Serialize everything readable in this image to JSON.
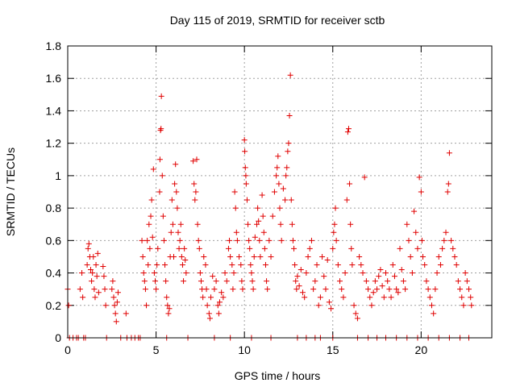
{
  "chart_data": {
    "type": "scatter",
    "title": "Day 115 of 2019, SRMTID for receiver sctb",
    "xlabel": "GPS time / hours",
    "ylabel": "SRMTID / TECUs",
    "xlim": [
      0,
      24
    ],
    "ylim": [
      0,
      1.8
    ],
    "x_ticks": [
      "0",
      "5",
      "10",
      "15",
      "20"
    ],
    "y_ticks": [
      "0",
      "0.2",
      "0.4",
      "0.6",
      "0.8",
      "1",
      "1.2",
      "1.4",
      "1.6",
      "1.8"
    ],
    "grid": true,
    "marker": "+",
    "color": "#e00000",
    "series": [
      {
        "name": "SRMTID",
        "points": [
          [
            0.0,
            0.3
          ],
          [
            0.05,
            0.2
          ],
          [
            0.3,
            0.0
          ],
          [
            0.6,
            0.0
          ],
          [
            0.9,
            0.0
          ],
          [
            0.7,
            0.3
          ],
          [
            0.8,
            0.4
          ],
          [
            0.85,
            0.25
          ],
          [
            1.1,
            0.45
          ],
          [
            1.15,
            0.55
          ],
          [
            1.2,
            0.58
          ],
          [
            1.25,
            0.5
          ],
          [
            1.3,
            0.42
          ],
          [
            1.35,
            0.35
          ],
          [
            1.4,
            0.4
          ],
          [
            1.45,
            0.5
          ],
          [
            1.5,
            0.3
          ],
          [
            1.55,
            0.25
          ],
          [
            1.6,
            0.45
          ],
          [
            1.65,
            0.38
          ],
          [
            1.7,
            0.52
          ],
          [
            1.75,
            0.28
          ],
          [
            2.0,
            0.44
          ],
          [
            2.05,
            0.38
          ],
          [
            2.1,
            0.3
          ],
          [
            2.15,
            0.2
          ],
          [
            2.5,
            0.3
          ],
          [
            2.55,
            0.35
          ],
          [
            2.6,
            0.25
          ],
          [
            2.65,
            0.2
          ],
          [
            2.7,
            0.15
          ],
          [
            2.75,
            0.1
          ],
          [
            2.8,
            0.22
          ],
          [
            2.85,
            0.28
          ],
          [
            3.3,
            0.15
          ],
          [
            3.35,
            0.0
          ],
          [
            3.8,
            0.0
          ],
          [
            4.1,
            0.0
          ],
          [
            4.2,
            0.6
          ],
          [
            4.25,
            0.5
          ],
          [
            4.3,
            0.4
          ],
          [
            4.35,
            0.35
          ],
          [
            4.4,
            0.3
          ],
          [
            4.45,
            0.2
          ],
          [
            4.5,
            0.6
          ],
          [
            4.55,
            0.45
          ],
          [
            4.6,
            0.7
          ],
          [
            4.65,
            0.55
          ],
          [
            4.7,
            0.75
          ],
          [
            4.75,
            0.85
          ],
          [
            4.8,
            0.62
          ],
          [
            4.85,
            1.04
          ],
          [
            4.9,
            0.4
          ],
          [
            4.95,
            0.35
          ],
          [
            5.0,
            0.3
          ],
          [
            5.05,
            0.45
          ],
          [
            5.1,
            0.55
          ],
          [
            5.2,
            0.9
          ],
          [
            5.22,
            1.1
          ],
          [
            5.25,
            1.28
          ],
          [
            5.28,
            1.29
          ],
          [
            5.3,
            1.49
          ],
          [
            5.35,
            1.0
          ],
          [
            5.4,
            0.75
          ],
          [
            5.45,
            0.6
          ],
          [
            5.5,
            0.45
          ],
          [
            5.55,
            0.35
          ],
          [
            5.6,
            0.25
          ],
          [
            5.65,
            0.2
          ],
          [
            5.7,
            0.15
          ],
          [
            5.75,
            0.18
          ],
          [
            5.8,
            0.5
          ],
          [
            5.85,
            0.65
          ],
          [
            5.9,
            0.85
          ],
          [
            5.95,
            0.7
          ],
          [
            6.0,
            0.5
          ],
          [
            6.05,
            0.95
          ],
          [
            6.1,
            1.07
          ],
          [
            6.15,
            0.9
          ],
          [
            6.2,
            0.8
          ],
          [
            6.25,
            0.65
          ],
          [
            6.3,
            0.55
          ],
          [
            6.35,
            0.6
          ],
          [
            6.4,
            0.7
          ],
          [
            6.45,
            0.5
          ],
          [
            6.5,
            0.45
          ],
          [
            6.55,
            0.35
          ],
          [
            6.6,
            0.55
          ],
          [
            6.65,
            0.48
          ],
          [
            6.7,
            0.4
          ],
          [
            7.1,
            1.09
          ],
          [
            7.15,
            0.95
          ],
          [
            7.2,
            0.85
          ],
          [
            7.25,
            0.9
          ],
          [
            7.3,
            1.1
          ],
          [
            7.35,
            0.7
          ],
          [
            7.4,
            0.6
          ],
          [
            7.45,
            0.55
          ],
          [
            7.5,
            0.4
          ],
          [
            7.55,
            0.35
          ],
          [
            7.6,
            0.3
          ],
          [
            7.65,
            0.25
          ],
          [
            7.7,
            0.5
          ],
          [
            7.8,
            0.45
          ],
          [
            7.85,
            0.3
          ],
          [
            7.9,
            0.2
          ],
          [
            8.0,
            0.15
          ],
          [
            8.05,
            0.12
          ],
          [
            8.1,
            0.25
          ],
          [
            8.2,
            0.38
          ],
          [
            8.3,
            0.3
          ],
          [
            8.4,
            0.35
          ],
          [
            8.5,
            0.2
          ],
          [
            8.55,
            0.15
          ],
          [
            8.6,
            0.22
          ],
          [
            8.7,
            0.28
          ],
          [
            8.8,
            0.25
          ],
          [
            8.9,
            0.4
          ],
          [
            9.0,
            0.35
          ],
          [
            9.1,
            0.55
          ],
          [
            9.15,
            0.6
          ],
          [
            9.2,
            0.5
          ],
          [
            9.3,
            0.45
          ],
          [
            9.35,
            0.3
          ],
          [
            9.4,
            0.4
          ],
          [
            9.45,
            0.9
          ],
          [
            9.5,
            0.8
          ],
          [
            9.55,
            0.65
          ],
          [
            9.6,
            0.6
          ],
          [
            9.7,
            0.5
          ],
          [
            9.8,
            0.45
          ],
          [
            9.85,
            0.35
          ],
          [
            9.9,
            0.3
          ],
          [
            10.0,
            1.22
          ],
          [
            10.02,
            1.15
          ],
          [
            10.05,
            1.05
          ],
          [
            10.08,
            1.0
          ],
          [
            10.1,
            0.95
          ],
          [
            10.15,
            0.85
          ],
          [
            10.2,
            0.7
          ],
          [
            10.25,
            0.6
          ],
          [
            10.3,
            0.55
          ],
          [
            10.35,
            0.45
          ],
          [
            10.4,
            0.4
          ],
          [
            10.45,
            0.35
          ],
          [
            10.5,
            0.3
          ],
          [
            10.55,
            0.5
          ],
          [
            10.6,
            0.62
          ],
          [
            10.7,
            0.7
          ],
          [
            10.75,
            0.8
          ],
          [
            10.8,
            0.72
          ],
          [
            10.85,
            0.6
          ],
          [
            10.9,
            0.5
          ],
          [
            11.0,
            0.88
          ],
          [
            11.05,
            0.75
          ],
          [
            11.1,
            0.65
          ],
          [
            11.15,
            0.55
          ],
          [
            11.2,
            0.45
          ],
          [
            11.25,
            0.35
          ],
          [
            11.3,
            0.3
          ],
          [
            11.4,
            0.6
          ],
          [
            11.5,
            0.5
          ],
          [
            11.6,
            0.75
          ],
          [
            11.7,
            0.9
          ],
          [
            11.8,
            1.0
          ],
          [
            11.85,
            1.05
          ],
          [
            11.9,
            1.12
          ],
          [
            11.95,
            0.95
          ],
          [
            12.0,
            0.8
          ],
          [
            12.05,
            0.7
          ],
          [
            12.1,
            0.6
          ],
          [
            12.2,
            0.92
          ],
          [
            12.3,
            0.85
          ],
          [
            12.35,
            1.0
          ],
          [
            12.4,
            1.05
          ],
          [
            12.45,
            1.15
          ],
          [
            12.5,
            1.2
          ],
          [
            12.55,
            1.37
          ],
          [
            12.6,
            1.62
          ],
          [
            12.65,
            0.85
          ],
          [
            12.7,
            0.7
          ],
          [
            12.75,
            0.6
          ],
          [
            12.8,
            0.55
          ],
          [
            12.85,
            0.45
          ],
          [
            12.9,
            0.35
          ],
          [
            12.95,
            0.3
          ],
          [
            13.0,
            0.38
          ],
          [
            13.1,
            0.32
          ],
          [
            13.2,
            0.42
          ],
          [
            13.3,
            0.28
          ],
          [
            13.4,
            0.25
          ],
          [
            13.5,
            0.4
          ],
          [
            13.6,
            0.5
          ],
          [
            13.7,
            0.55
          ],
          [
            13.8,
            0.6
          ],
          [
            13.9,
            0.3
          ],
          [
            14.0,
            0.35
          ],
          [
            14.1,
            0.45
          ],
          [
            14.2,
            0.2
          ],
          [
            14.3,
            0.25
          ],
          [
            14.4,
            0.5
          ],
          [
            14.5,
            0.38
          ],
          [
            14.6,
            0.3
          ],
          [
            14.7,
            0.48
          ],
          [
            14.8,
            0.22
          ],
          [
            14.9,
            0.18
          ],
          [
            15.0,
            0.55
          ],
          [
            15.05,
            0.65
          ],
          [
            15.1,
            0.7
          ],
          [
            15.15,
            0.8
          ],
          [
            15.2,
            0.6
          ],
          [
            15.3,
            0.45
          ],
          [
            15.4,
            0.35
          ],
          [
            15.5,
            0.3
          ],
          [
            15.6,
            0.25
          ],
          [
            15.7,
            0.4
          ],
          [
            15.8,
            0.85
          ],
          [
            15.85,
            1.27
          ],
          [
            15.9,
            1.29
          ],
          [
            15.95,
            0.95
          ],
          [
            16.0,
            0.7
          ],
          [
            16.05,
            0.55
          ],
          [
            16.1,
            0.45
          ],
          [
            16.2,
            0.2
          ],
          [
            16.3,
            0.15
          ],
          [
            16.4,
            0.12
          ],
          [
            16.5,
            0.5
          ],
          [
            16.6,
            0.45
          ],
          [
            16.7,
            0.4
          ],
          [
            16.8,
            0.99
          ],
          [
            16.9,
            0.35
          ],
          [
            17.0,
            0.3
          ],
          [
            17.1,
            0.25
          ],
          [
            17.2,
            0.2
          ],
          [
            17.3,
            0.28
          ],
          [
            17.4,
            0.35
          ],
          [
            17.5,
            0.3
          ],
          [
            17.6,
            0.38
          ],
          [
            17.7,
            0.42
          ],
          [
            17.8,
            0.32
          ],
          [
            17.9,
            0.25
          ],
          [
            18.0,
            0.4
          ],
          [
            18.1,
            0.35
          ],
          [
            18.2,
            0.3
          ],
          [
            18.3,
            0.25
          ],
          [
            18.4,
            0.45
          ],
          [
            18.5,
            0.38
          ],
          [
            18.6,
            0.3
          ],
          [
            18.7,
            0.28
          ],
          [
            18.8,
            0.55
          ],
          [
            18.9,
            0.42
          ],
          [
            19.0,
            0.35
          ],
          [
            19.1,
            0.3
          ],
          [
            19.2,
            0.7
          ],
          [
            19.3,
            0.6
          ],
          [
            19.4,
            0.5
          ],
          [
            19.5,
            0.4
          ],
          [
            19.6,
            0.78
          ],
          [
            19.7,
            0.65
          ],
          [
            19.8,
            0.55
          ],
          [
            19.9,
            0.99
          ],
          [
            20.0,
            0.9
          ],
          [
            20.05,
            0.6
          ],
          [
            20.1,
            0.5
          ],
          [
            20.2,
            0.45
          ],
          [
            20.3,
            0.35
          ],
          [
            20.4,
            0.3
          ],
          [
            20.5,
            0.25
          ],
          [
            20.6,
            0.2
          ],
          [
            20.7,
            0.15
          ],
          [
            20.8,
            0.3
          ],
          [
            20.9,
            0.4
          ],
          [
            21.0,
            0.5
          ],
          [
            21.1,
            0.45
          ],
          [
            21.2,
            0.55
          ],
          [
            21.3,
            0.6
          ],
          [
            21.4,
            0.65
          ],
          [
            21.5,
            0.9
          ],
          [
            21.55,
            0.95
          ],
          [
            21.6,
            1.14
          ],
          [
            21.7,
            0.6
          ],
          [
            21.8,
            0.55
          ],
          [
            21.9,
            0.5
          ],
          [
            22.0,
            0.45
          ],
          [
            22.1,
            0.35
          ],
          [
            22.2,
            0.3
          ],
          [
            22.3,
            0.25
          ],
          [
            22.4,
            0.2
          ],
          [
            22.5,
            0.4
          ],
          [
            22.6,
            0.35
          ],
          [
            22.7,
            0.3
          ],
          [
            22.8,
            0.25
          ],
          [
            22.85,
            0.2
          ]
        ],
        "zero_line_hours": [
          0.1,
          0.5,
          1.0,
          2.2,
          3.0,
          3.6,
          4.0,
          5.6,
          6.8,
          8.3,
          9.2,
          10.4,
          11.5,
          13.0,
          13.5,
          14.0,
          14.3,
          15.0,
          16.4,
          17.0,
          17.5,
          18.0,
          18.6,
          19.2,
          19.8,
          20.4,
          21.0,
          21.6,
          22.2,
          22.7
        ]
      }
    ]
  }
}
